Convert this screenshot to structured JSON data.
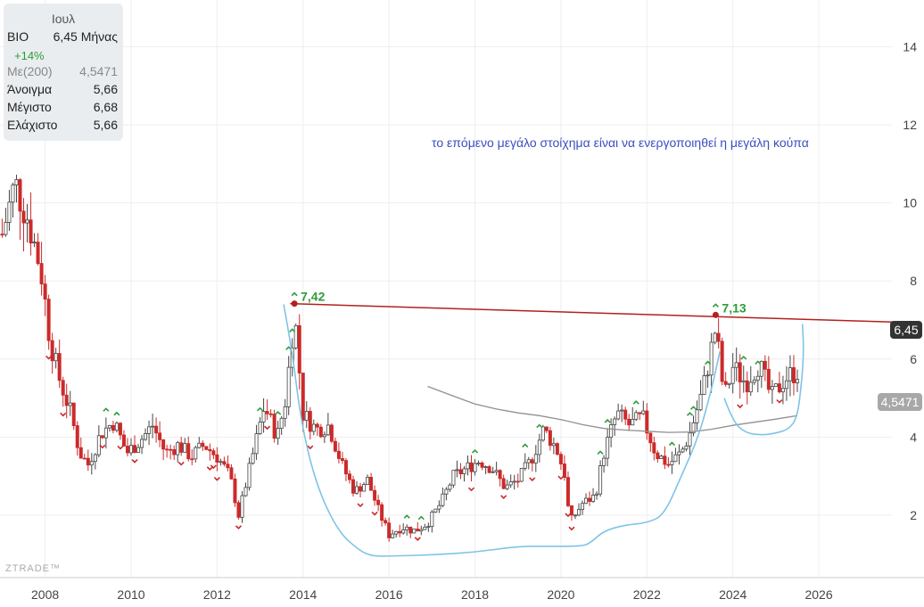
{
  "info": {
    "period": "Ιουλ",
    "ticker": "ΒΙΟ",
    "price_label": "6,45 Μήνας",
    "change": "+14%",
    "ma_label": "Με(200)",
    "ma_value": "4,5471",
    "open_label": "Άνοιγμα",
    "open_value": "5,66",
    "high_label": "Μέγιστο",
    "high_value": "6,68",
    "low_label": "Ελάχιστο",
    "low_value": "5,66"
  },
  "annotation_text": "το επόμενο μεγάλο στοίχημα είναι να ενεργοποιηθεί η μεγάλη κούπα",
  "price_badge": "6,45",
  "ma_badge": "4,5471",
  "watermark": "ZTRADE™",
  "peak_labels": [
    {
      "text": "7,42",
      "year": 2013.8,
      "value": 7.42
    },
    {
      "text": "7,13",
      "year": 2023.6,
      "value": 7.13
    }
  ],
  "colors": {
    "up": "#444444",
    "down": "#cc2a2a",
    "resistance": "#b32020",
    "cup": "#7ec4e6",
    "ma": "#909090",
    "peak_text": "#2e9b3a"
  },
  "chart_data": {
    "type": "candlestick",
    "xlabel": "",
    "ylabel": "",
    "x_ticks": [
      "2008",
      "2010",
      "2012",
      "2014",
      "2016",
      "2018",
      "2020",
      "2022",
      "2024",
      "2026"
    ],
    "y_ticks": [
      "2",
      "4",
      "6",
      "8",
      "10",
      "12",
      "14"
    ],
    "xlim": [
      2006.95,
      2027.7
    ],
    "ylim": [
      0.4,
      15.2
    ],
    "y_tick_values": [
      2,
      4,
      6,
      8,
      10,
      12,
      14
    ],
    "x_tick_values": [
      2008,
      2010,
      2012,
      2014,
      2016,
      2018,
      2020,
      2022,
      2024,
      2026
    ],
    "close_series": [
      [
        2007.0,
        9.2
      ],
      [
        2007.3,
        10.5
      ],
      [
        2007.6,
        9.6
      ],
      [
        2007.9,
        8.3
      ],
      [
        2008.1,
        6.6
      ],
      [
        2008.3,
        5.6
      ],
      [
        2008.6,
        4.6
      ],
      [
        2008.8,
        3.6
      ],
      [
        2009.0,
        3.3
      ],
      [
        2009.3,
        4.1
      ],
      [
        2009.6,
        4.4
      ],
      [
        2009.9,
        3.6
      ],
      [
        2010.2,
        3.9
      ],
      [
        2010.5,
        4.3
      ],
      [
        2010.8,
        3.6
      ],
      [
        2011.1,
        3.8
      ],
      [
        2011.4,
        3.5
      ],
      [
        2011.7,
        3.8
      ],
      [
        2012.0,
        3.5
      ],
      [
        2012.3,
        3.0
      ],
      [
        2012.5,
        2.0
      ],
      [
        2012.8,
        3.4
      ],
      [
        2013.1,
        4.8
      ],
      [
        2013.4,
        4.0
      ],
      [
        2013.6,
        5.0
      ],
      [
        2013.8,
        7.2
      ],
      [
        2014.0,
        4.6
      ],
      [
        2014.3,
        4.2
      ],
      [
        2014.6,
        4.3
      ],
      [
        2014.9,
        3.3
      ],
      [
        2015.2,
        2.6
      ],
      [
        2015.5,
        2.9
      ],
      [
        2015.8,
        2.0
      ],
      [
        2016.0,
        1.5
      ],
      [
        2016.3,
        1.7
      ],
      [
        2016.6,
        1.6
      ],
      [
        2016.9,
        1.8
      ],
      [
        2017.2,
        2.3
      ],
      [
        2017.5,
        3.0
      ],
      [
        2017.8,
        3.2
      ],
      [
        2018.1,
        3.4
      ],
      [
        2018.4,
        3.2
      ],
      [
        2018.7,
        2.7
      ],
      [
        2019.0,
        2.9
      ],
      [
        2019.3,
        3.4
      ],
      [
        2019.6,
        4.2
      ],
      [
        2019.9,
        3.7
      ],
      [
        2020.1,
        3.0
      ],
      [
        2020.2,
        1.8
      ],
      [
        2020.5,
        2.3
      ],
      [
        2020.8,
        2.5
      ],
      [
        2021.0,
        3.6
      ],
      [
        2021.3,
        4.6
      ],
      [
        2021.6,
        4.3
      ],
      [
        2021.9,
        4.5
      ],
      [
        2022.2,
        3.6
      ],
      [
        2022.5,
        3.3
      ],
      [
        2022.8,
        3.6
      ],
      [
        2023.0,
        4.1
      ],
      [
        2023.3,
        5.2
      ],
      [
        2023.6,
        6.8
      ],
      [
        2023.8,
        5.0
      ],
      [
        2024.0,
        5.8
      ],
      [
        2024.3,
        5.4
      ],
      [
        2024.6,
        5.9
      ],
      [
        2024.9,
        5.0
      ],
      [
        2025.2,
        5.5
      ],
      [
        2025.5,
        5.7
      ],
      [
        2025.55,
        6.45
      ]
    ],
    "moving_average": {
      "name": "Με(200)",
      "points": [
        [
          2016.9,
          5.3
        ],
        [
          2017.5,
          5.05
        ],
        [
          2018.0,
          4.85
        ],
        [
          2018.5,
          4.72
        ],
        [
          2019.0,
          4.62
        ],
        [
          2019.5,
          4.55
        ],
        [
          2020.0,
          4.45
        ],
        [
          2020.5,
          4.32
        ],
        [
          2021.0,
          4.22
        ],
        [
          2021.5,
          4.18
        ],
        [
          2022.0,
          4.15
        ],
        [
          2022.5,
          4.12
        ],
        [
          2023.0,
          4.13
        ],
        [
          2023.5,
          4.2
        ],
        [
          2024.0,
          4.3
        ],
        [
          2024.5,
          4.38
        ],
        [
          2025.0,
          4.46
        ],
        [
          2025.5,
          4.55
        ]
      ]
    },
    "resistance_line": {
      "start": [
        2013.7,
        7.42
      ],
      "end": [
        2027.7,
        6.95
      ]
    },
    "cup_pattern_1": [
      [
        2013.55,
        7.4
      ],
      [
        2013.75,
        6.2
      ],
      [
        2013.95,
        4.4
      ],
      [
        2014.3,
        2.8
      ],
      [
        2014.8,
        1.6
      ],
      [
        2015.3,
        1.1
      ],
      [
        2015.6,
        0.95
      ],
      [
        2016.0,
        0.95
      ],
      [
        2017.0,
        0.98
      ],
      [
        2018.0,
        1.05
      ],
      [
        2019.0,
        1.2
      ],
      [
        2019.6,
        1.2
      ],
      [
        2020.5,
        1.2
      ],
      [
        2020.7,
        1.3
      ],
      [
        2021.0,
        1.6
      ],
      [
        2021.5,
        1.75
      ],
      [
        2022.0,
        1.8
      ],
      [
        2022.4,
        2.0
      ],
      [
        2022.8,
        3.0
      ],
      [
        2023.2,
        4.0
      ],
      [
        2023.5,
        5.2
      ],
      [
        2023.7,
        6.2
      ]
    ],
    "cup_pattern_2": [
      [
        2023.8,
        5.0
      ],
      [
        2024.0,
        4.4
      ],
      [
        2024.3,
        4.1
      ],
      [
        2024.7,
        4.05
      ],
      [
        2025.0,
        4.1
      ],
      [
        2025.3,
        4.2
      ],
      [
        2025.5,
        4.5
      ],
      [
        2025.6,
        5.4
      ],
      [
        2025.65,
        6.2
      ],
      [
        2025.62,
        6.9
      ]
    ],
    "peaks": [
      [
        2013.8,
        7.42
      ],
      [
        2023.6,
        7.13
      ]
    ]
  }
}
